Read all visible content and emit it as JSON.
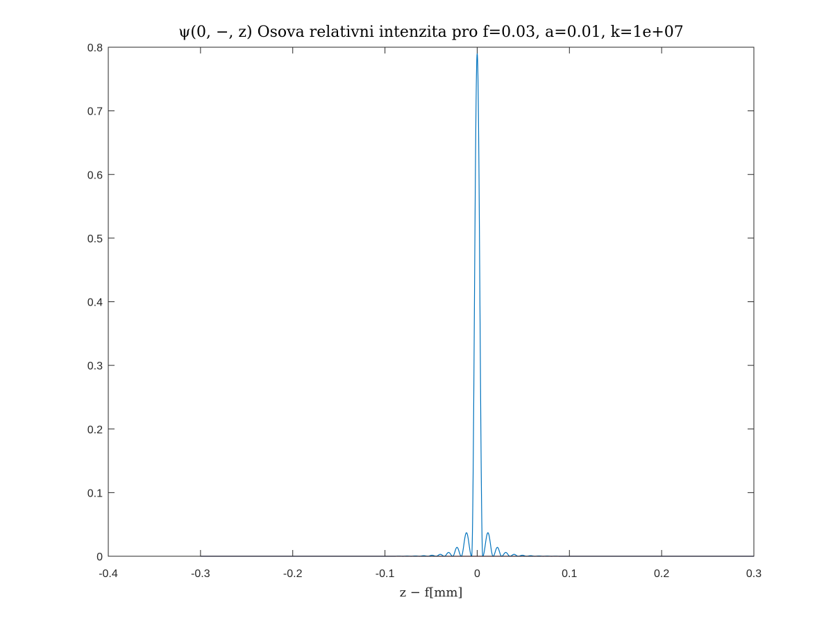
{
  "chart_data": {
    "type": "line",
    "title": "ψ(0, −, z) Osova relativni intenzita pro f=0.03, a=0.01, k=1e+07",
    "xlabel": "z − f[mm]",
    "ylabel": "",
    "xlim": [
      -0.4,
      0.3
    ],
    "ylim": [
      0,
      0.8
    ],
    "xticks": [
      -0.4,
      -0.3,
      -0.2,
      -0.1,
      0,
      0.1,
      0.2,
      0.3
    ],
    "xtick_labels": [
      "-0.4",
      "-0.3",
      "-0.2",
      "-0.1",
      "0",
      "0.1",
      "0.2",
      "0.3"
    ],
    "yticks": [
      0,
      0.1,
      0.2,
      0.3,
      0.4,
      0.5,
      0.6,
      0.7,
      0.8
    ],
    "ytick_labels": [
      "0",
      "0.1",
      "0.2",
      "0.3",
      "0.4",
      "0.5",
      "0.6",
      "0.7",
      "0.8"
    ],
    "grid": false,
    "legend": "none",
    "series": [
      {
        "color": "#0072BD",
        "x_range": [
          -0.3,
          0.3
        ],
        "peak": 0.79,
        "first_zero": 0.006,
        "sidelobes": [
          {
            "x": 0.0125,
            "y": 0.037
          },
          {
            "x": 0.022,
            "y": 0.014
          },
          {
            "x": 0.031,
            "y": 0.006
          },
          {
            "x": 0.04,
            "y": 0.003
          },
          {
            "x": 0.049,
            "y": 0.0016
          },
          {
            "x": 0.058,
            "y": 0.0009
          },
          {
            "x": 0.067,
            "y": 0.0005
          },
          {
            "x": 0.076,
            "y": 0.0003
          },
          {
            "x": 0.085,
            "y": 0.0002
          }
        ]
      },
      {
        "color": "#A2142F",
        "x": [
          -0.3,
          0.3
        ],
        "y": [
          0,
          0
        ]
      }
    ]
  }
}
